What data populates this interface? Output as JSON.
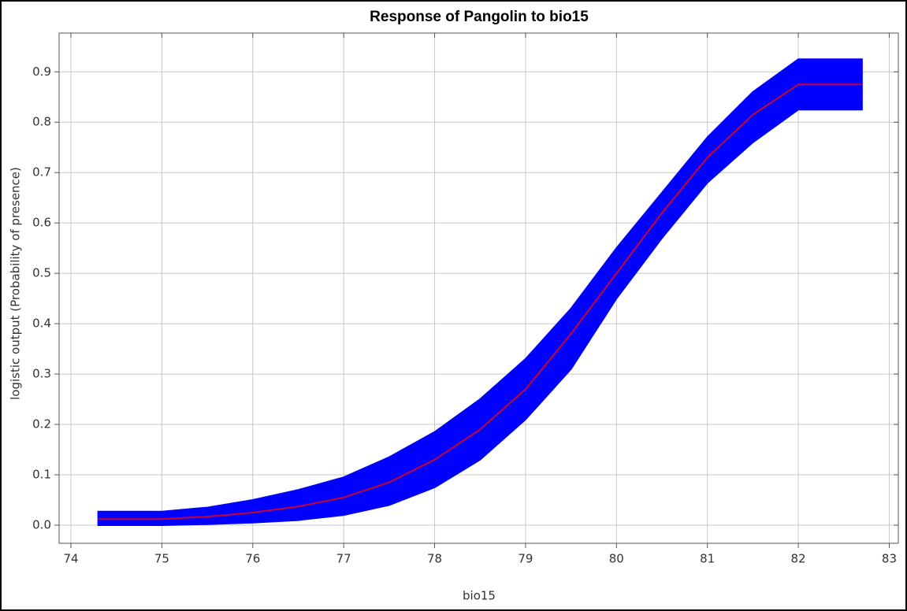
{
  "chart_data": {
    "type": "line",
    "title": "Response of Pangolin to bio15",
    "xlabel": "bio15",
    "ylabel": "logistic output (Probability of presence)",
    "x": [
      74.3,
      75,
      75.5,
      76,
      76.5,
      77,
      77.5,
      78,
      78.5,
      79,
      79.5,
      80,
      80.5,
      81,
      81.5,
      82,
      82.7
    ],
    "series": [
      {
        "color": "#cc0033",
        "values": [
          0.012,
          0.012,
          0.017,
          0.025,
          0.037,
          0.055,
          0.085,
          0.13,
          0.19,
          0.27,
          0.38,
          0.5,
          0.62,
          0.73,
          0.815,
          0.875,
          0.875
        ]
      }
    ],
    "band": {
      "color": "#0000ff",
      "upper": [
        0.027,
        0.027,
        0.035,
        0.05,
        0.07,
        0.095,
        0.135,
        0.185,
        0.25,
        0.33,
        0.43,
        0.55,
        0.66,
        0.77,
        0.86,
        0.925,
        0.925
      ],
      "lower": [
        0.0,
        0.0,
        0.002,
        0.005,
        0.01,
        0.02,
        0.04,
        0.075,
        0.13,
        0.21,
        0.31,
        0.45,
        0.57,
        0.68,
        0.76,
        0.825,
        0.825
      ]
    },
    "xlim": [
      73.87,
      83.1
    ],
    "ylim": [
      -0.036,
      0.977
    ],
    "xticks": [
      74,
      75,
      76,
      77,
      78,
      79,
      80,
      81,
      82,
      83
    ],
    "yticks": [
      {
        "value": 0,
        "label": "0.0"
      },
      0.1,
      0.2,
      0.3,
      0.4,
      0.5,
      0.6,
      0.7,
      0.8,
      0.9
    ],
    "grid": true
  }
}
